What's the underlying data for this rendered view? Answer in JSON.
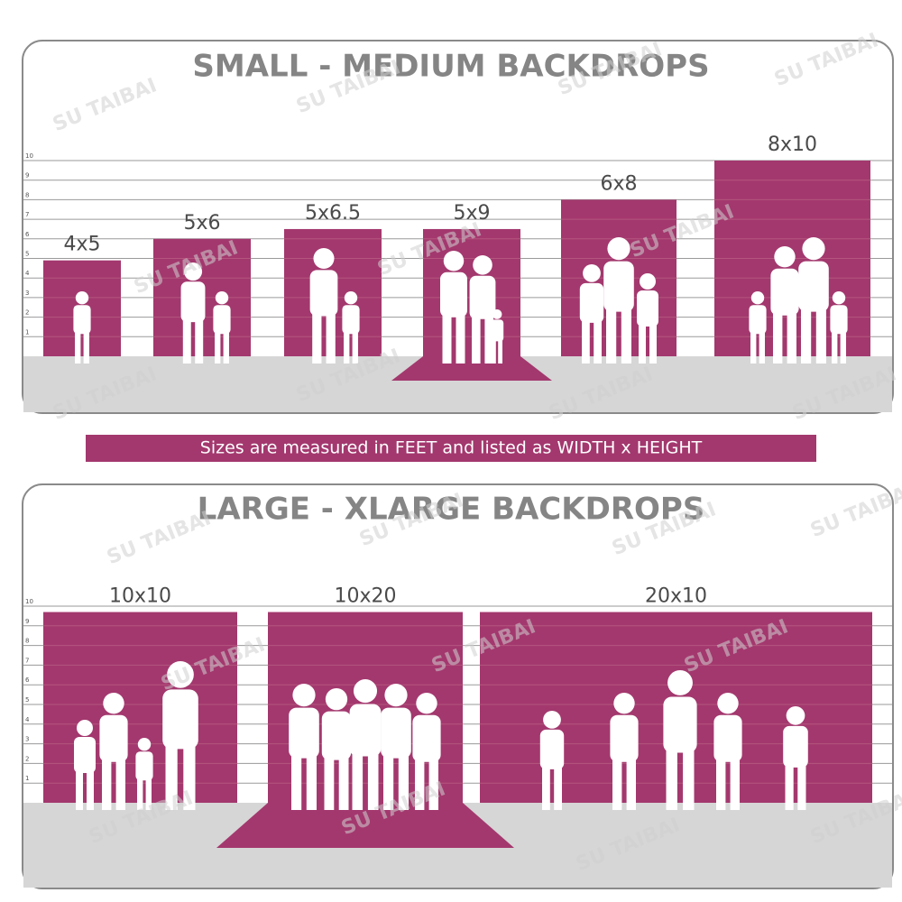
{
  "small_panel": {
    "title": "SMALL - MEDIUM BACKDROPS",
    "backdrops": [
      "4x5",
      "5x6",
      "5x6.5",
      "5x9",
      "6x8",
      "8x10"
    ],
    "scale": [
      1,
      2,
      3,
      4,
      5,
      6,
      7,
      8,
      9,
      10
    ]
  },
  "note": "Sizes are measured in FEET and listed as WIDTH x HEIGHT",
  "large_panel": {
    "title": "LARGE - XLARGE BACKDROPS",
    "backdrops": [
      "10x10",
      "10x20",
      "20x10"
    ],
    "scale": [
      1,
      2,
      3,
      4,
      5,
      6,
      7,
      8,
      9,
      10
    ]
  },
  "watermark": "SU TAIBAI"
}
